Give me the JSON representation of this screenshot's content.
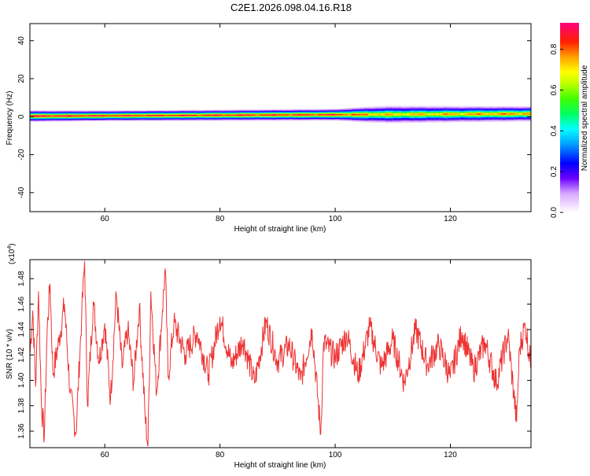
{
  "title": "C2E1.2026.098.04.16.R18",
  "colors": {
    "snr_line": "#ee3333",
    "axis": "#000000"
  },
  "chart_data": [
    {
      "type": "heatmap",
      "xlabel": "Height of straight line (km)",
      "ylabel": "Frequency (Hz)",
      "xlim": [
        47,
        134
      ],
      "ylim": [
        -50,
        49
      ],
      "x_ticks": [
        60,
        80,
        100,
        120
      ],
      "y_ticks": [
        -40,
        -20,
        0,
        20,
        40
      ],
      "band": {
        "center_start_hz": 0.3,
        "center_end_hz": 1.5,
        "note_x": [
          47,
          60,
          80,
          100,
          106,
          110,
          120,
          134
        ],
        "halfwidth_hz": [
          3.0,
          2.8,
          2.9,
          3.1,
          4.2,
          4.6,
          4.3,
          4.0
        ],
        "peak_amplitude": [
          0.95,
          0.93,
          0.92,
          0.9,
          0.8,
          0.75,
          0.78,
          0.82
        ]
      },
      "colorbar": {
        "label": "Normalized spectral amplitude",
        "range": [
          0.0,
          0.93
        ],
        "ticks": [
          "0.0",
          "0.2",
          "0.4",
          "0.6",
          "0.8"
        ],
        "tick_values": [
          0.0,
          0.2,
          0.4,
          0.6,
          0.8
        ]
      }
    },
    {
      "type": "line",
      "xlabel": "Height of straight line (km)",
      "ylabel": "SNR (10 * v/v)",
      "y_multiplier_label": "(x10",
      "y_multiplier_exp": "4",
      "y_multiplier_close": ")",
      "xlim": [
        47,
        134
      ],
      "ylim": [
        1.347,
        1.495
      ],
      "x_ticks": [
        60,
        80,
        100,
        120
      ],
      "y_ticks": [
        "1.36",
        "1.38",
        "1.40",
        "1.42",
        "1.44",
        "1.46",
        "1.48"
      ],
      "y_tick_values": [
        1.36,
        1.38,
        1.4,
        1.42,
        1.44,
        1.46,
        1.48
      ],
      "series": [
        {
          "x": [
            47.0,
            47.5,
            48.0,
            48.5,
            49.0,
            49.5,
            50.0,
            50.5,
            51.0,
            52.0,
            53.0,
            54.0,
            55.0,
            56.0,
            56.5,
            57.0,
            58.0,
            59.0,
            60.0,
            61.0,
            62.0,
            63.0,
            64.0,
            65.0,
            66.0,
            67.0,
            67.5,
            68.0,
            69.0,
            70.0,
            70.5,
            71.0,
            72.0,
            74.0,
            76.0,
            78.0,
            80.0,
            82.0,
            84.0,
            86.0,
            88.0,
            90.0,
            92.0,
            94.0,
            96.0,
            97.5,
            98.0,
            100.0,
            102.0,
            104.0,
            106.0,
            108.0,
            110.0,
            112.0,
            114.0,
            116.0,
            118.0,
            120.0,
            122.0,
            124.0,
            126.0,
            128.0,
            130.0,
            131.5,
            132.0,
            133.0,
            134.0
          ],
          "y": [
            1.42,
            1.455,
            1.395,
            1.47,
            1.382,
            1.355,
            1.44,
            1.476,
            1.405,
            1.43,
            1.46,
            1.39,
            1.358,
            1.452,
            1.494,
            1.38,
            1.462,
            1.415,
            1.445,
            1.385,
            1.468,
            1.41,
            1.44,
            1.398,
            1.458,
            1.372,
            1.348,
            1.47,
            1.39,
            1.455,
            1.488,
            1.402,
            1.445,
            1.42,
            1.438,
            1.405,
            1.45,
            1.412,
            1.432,
            1.398,
            1.446,
            1.415,
            1.428,
            1.4,
            1.44,
            1.358,
            1.43,
            1.418,
            1.436,
            1.404,
            1.442,
            1.41,
            1.432,
            1.398,
            1.44,
            1.412,
            1.428,
            1.402,
            1.438,
            1.408,
            1.43,
            1.398,
            1.436,
            1.367,
            1.425,
            1.444,
            1.412
          ]
        }
      ]
    }
  ]
}
